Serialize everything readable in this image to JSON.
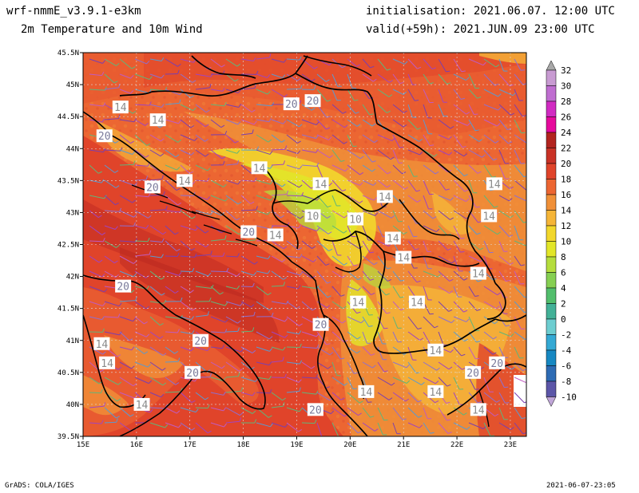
{
  "header": {
    "model": "wrf-nmmE_v3.9.1-e3km",
    "product": "2m Temperature and 10m Wind",
    "init": "initialisation: 2021.06.07. 12:00 UTC",
    "valid": "valid(+59h): 2021.JUN.09 23:00 UTC"
  },
  "footer": {
    "left": "GrADS: COLA/IGES",
    "right": "2021-06-07-23:05"
  },
  "map": {
    "lon_labels": [
      "15E",
      "16E",
      "17E",
      "18E",
      "19E",
      "20E",
      "21E",
      "22E",
      "23E"
    ],
    "lat_labels": [
      "45.5N",
      "45N",
      "44.5N",
      "44N",
      "43.5N",
      "43N",
      "42.5N",
      "42N",
      "41.5N",
      "41N",
      "40.5N",
      "40N",
      "39.5N"
    ],
    "lon_range": [
      15,
      23.3
    ],
    "lat_range": [
      39.5,
      45.5
    ]
  },
  "colorbar": {
    "labels": [
      "32",
      "30",
      "28",
      "26",
      "24",
      "22",
      "20",
      "18",
      "16",
      "14",
      "12",
      "10",
      "8",
      "6",
      "4",
      "2",
      "0",
      "-2",
      "-4",
      "-6",
      "-8",
      "-10"
    ],
    "colors": [
      "#c89bd2",
      "#bf6ed0",
      "#d12bc2",
      "#e60a9c",
      "#b2241f",
      "#c93226",
      "#e0442a",
      "#ec6632",
      "#f09038",
      "#f5b538",
      "#f2d72c",
      "#e2e629",
      "#b5dd3d",
      "#86cf52",
      "#52be6c",
      "#43b197",
      "#6dcdd0",
      "#34a9d4",
      "#1788c2",
      "#2d6bb4",
      "#5c56a8"
    ],
    "arrow_top_color": "#a8a8a8",
    "arrow_bottom_color": "#c0a6d8"
  },
  "contour_labels": [
    {
      "text": "14",
      "lon": 15.7,
      "lat": 44.65
    },
    {
      "text": "14",
      "lon": 16.4,
      "lat": 44.45
    },
    {
      "text": "20",
      "lon": 15.4,
      "lat": 44.2
    },
    {
      "text": "20",
      "lon": 18.9,
      "lat": 44.7
    },
    {
      "text": "20",
      "lon": 19.3,
      "lat": 44.75
    },
    {
      "text": "14",
      "lon": 18.3,
      "lat": 43.7
    },
    {
      "text": "20",
      "lon": 16.3,
      "lat": 43.4
    },
    {
      "text": "14",
      "lon": 16.9,
      "lat": 43.5
    },
    {
      "text": "14",
      "lon": 19.45,
      "lat": 43.45
    },
    {
      "text": "14",
      "lon": 20.65,
      "lat": 43.25
    },
    {
      "text": "14",
      "lon": 22.7,
      "lat": 43.45
    },
    {
      "text": "10",
      "lon": 19.3,
      "lat": 42.95
    },
    {
      "text": "10",
      "lon": 20.1,
      "lat": 42.9
    },
    {
      "text": "20",
      "lon": 18.1,
      "lat": 42.7
    },
    {
      "text": "14",
      "lon": 18.6,
      "lat": 42.65
    },
    {
      "text": "14",
      "lon": 20.8,
      "lat": 42.6
    },
    {
      "text": "14",
      "lon": 22.6,
      "lat": 42.95
    },
    {
      "text": "14",
      "lon": 21.0,
      "lat": 42.3
    },
    {
      "text": "14",
      "lon": 22.4,
      "lat": 42.05
    },
    {
      "text": "20",
      "lon": 15.75,
      "lat": 41.85
    },
    {
      "text": "14",
      "lon": 20.15,
      "lat": 41.6
    },
    {
      "text": "14",
      "lon": 21.25,
      "lat": 41.6
    },
    {
      "text": "20",
      "lon": 19.45,
      "lat": 41.25
    },
    {
      "text": "14",
      "lon": 15.35,
      "lat": 40.95
    },
    {
      "text": "20",
      "lon": 17.2,
      "lat": 41.0
    },
    {
      "text": "14",
      "lon": 21.6,
      "lat": 40.85
    },
    {
      "text": "14",
      "lon": 15.45,
      "lat": 40.65
    },
    {
      "text": "20",
      "lon": 17.05,
      "lat": 40.5
    },
    {
      "text": "20",
      "lon": 22.3,
      "lat": 40.5
    },
    {
      "text": "20",
      "lon": 22.75,
      "lat": 40.65
    },
    {
      "text": "14",
      "lon": 20.3,
      "lat": 40.2
    },
    {
      "text": "14",
      "lon": 21.6,
      "lat": 40.2
    },
    {
      "text": "14",
      "lon": 16.1,
      "lat": 40.0
    },
    {
      "text": "20",
      "lon": 19.35,
      "lat": 39.92
    },
    {
      "text": "14",
      "lon": 22.4,
      "lat": 39.92
    }
  ]
}
